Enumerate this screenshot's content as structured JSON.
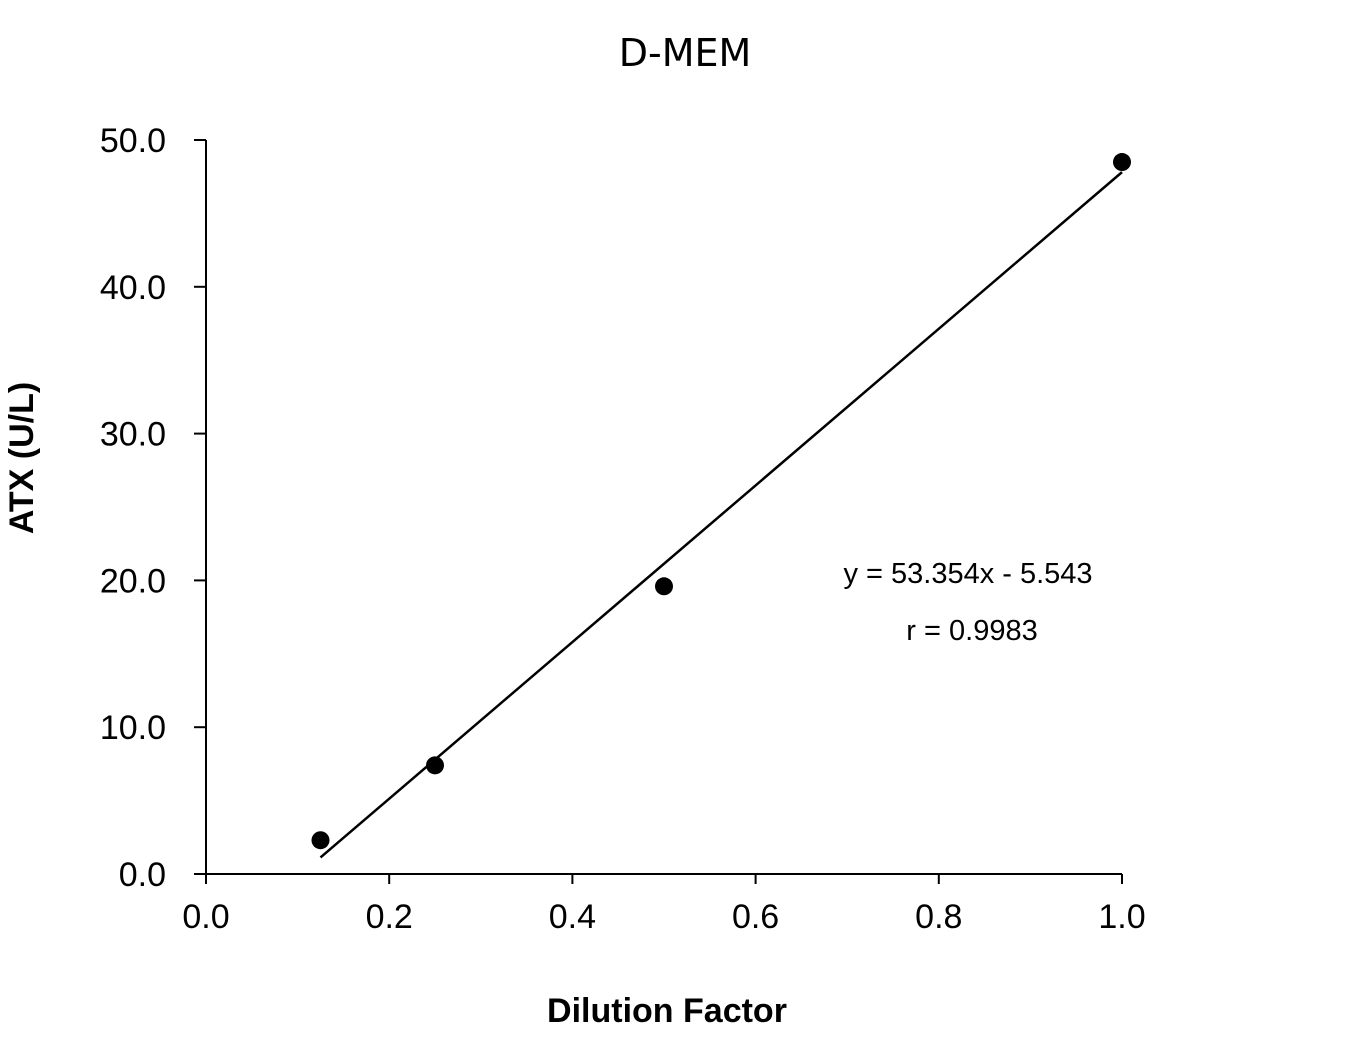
{
  "chart_data": {
    "type": "scatter",
    "title": "D-MEM",
    "xlabel": "Dilution Factor",
    "ylabel": "ATX (U/L)",
    "xlim": [
      0,
      1.0
    ],
    "ylim": [
      0,
      50.0
    ],
    "x_ticks": [
      "0.0",
      "0.2",
      "0.4",
      "0.6",
      "0.8",
      "1.0"
    ],
    "y_ticks": [
      "0.0",
      "10.0",
      "20.0",
      "30.0",
      "40.0",
      "50.0"
    ],
    "grid": false,
    "legend": "none",
    "series": [
      {
        "x": [
          0.125,
          0.25,
          0.5,
          1.0
        ],
        "y": [
          2.3,
          7.4,
          19.6,
          48.5
        ],
        "marker": "circle",
        "color": "#000000"
      }
    ],
    "trendline": {
      "type": "linear",
      "slope": 53.354,
      "intercept": -5.543,
      "x_range": [
        0.125,
        1.0
      ],
      "color": "#000000"
    },
    "annotations": [
      "y = 53.354x - 5.543",
      "r = 0.9983"
    ]
  }
}
